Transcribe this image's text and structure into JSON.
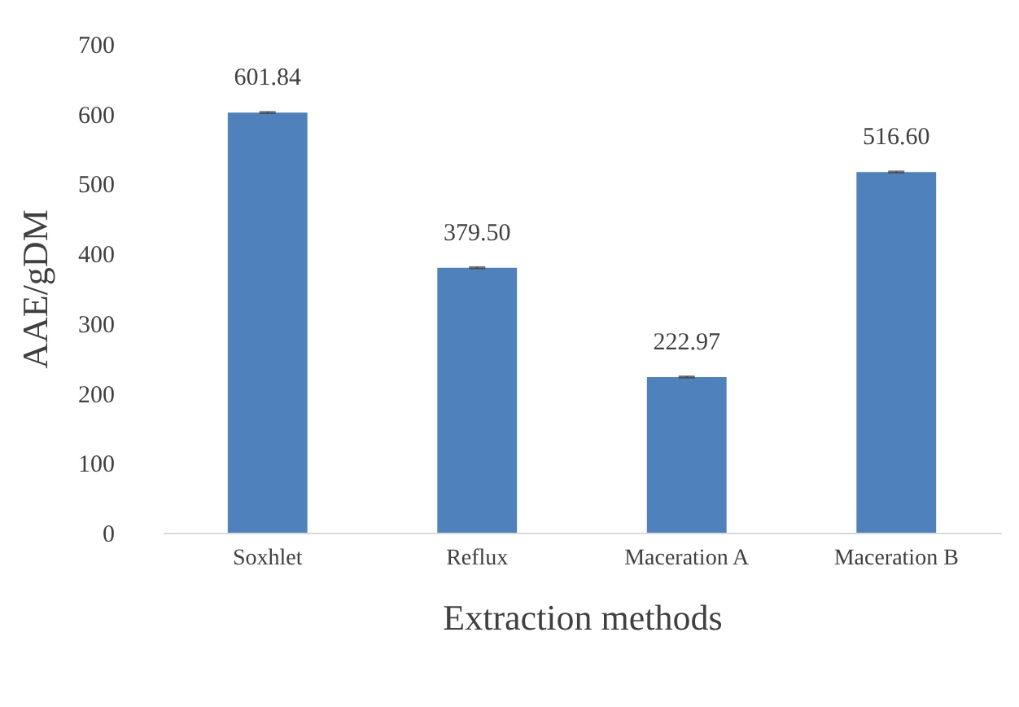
{
  "chart_data": {
    "type": "bar",
    "xlabel": "Extraction methods",
    "ylabel": "AAE/gDM",
    "categories": [
      "Soxhlet",
      "Reflux",
      "Maceration A",
      "Maceration B"
    ],
    "values": [
      601.84,
      379.5,
      222.97,
      516.6
    ],
    "color": "#4f81bd",
    "errors": [
      1,
      1,
      1,
      1
    ],
    "value_labels": [
      "601.84",
      "379.50",
      "222.97",
      "516.60"
    ],
    "ylim": [
      0,
      700
    ],
    "yticks": [
      0,
      100,
      200,
      300,
      400,
      500,
      600,
      700
    ],
    "grid": false
  }
}
